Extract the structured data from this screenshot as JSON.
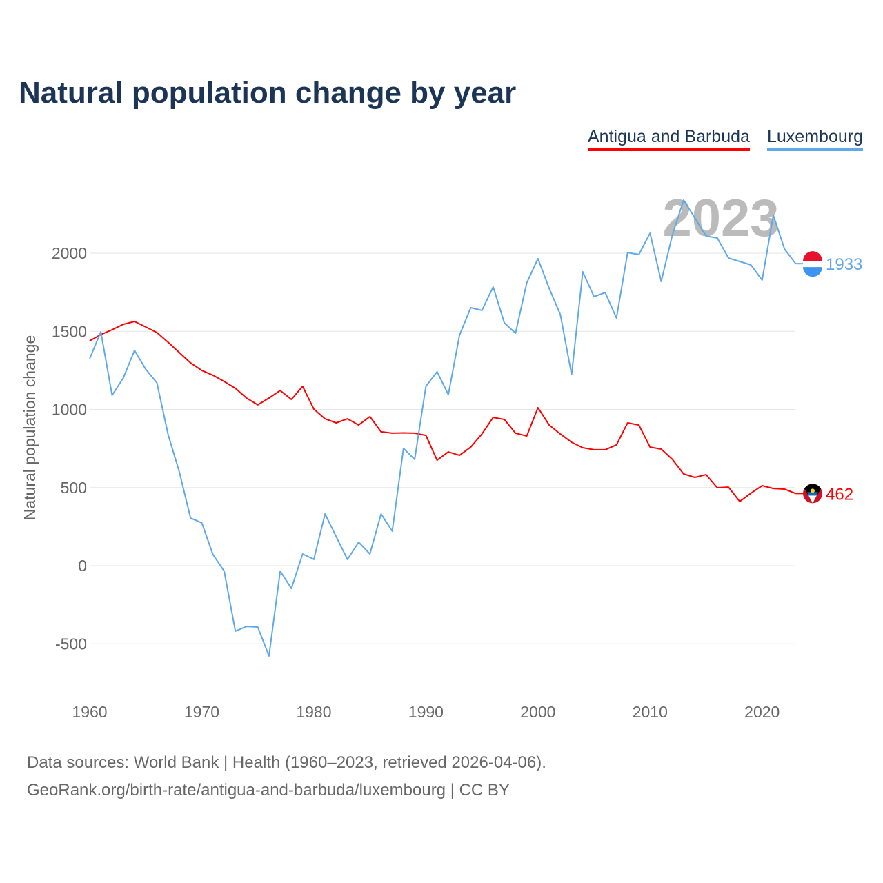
{
  "title": "Natural population change by year",
  "legend": [
    {
      "label": "Antigua and Barbuda",
      "color": "#ff0000"
    },
    {
      "label": "Luxembourg",
      "color": "#5fa8ea"
    }
  ],
  "year_watermark": "2023",
  "footer": {
    "line1": "Data sources: World Bank | Health (1960–2023, retrieved 2026-04-06).",
    "line2": "GeoRank.org/birth-rate/antigua-and-barbuda/luxembourg | CC BY"
  },
  "chart_data": {
    "type": "line",
    "title": "Natural population change by year",
    "xlabel": "",
    "ylabel": "Natural population change",
    "xlim": [
      1960,
      2023
    ],
    "ylim": [
      -750,
      2450
    ],
    "x_ticks": [
      "1960",
      "1970",
      "1980",
      "1990",
      "2000",
      "2010",
      "2020"
    ],
    "y_ticks": [
      "-500",
      "0",
      "500",
      "1000",
      "1500",
      "2000"
    ],
    "grid": true,
    "legend_position": "top-right",
    "x": [
      1960,
      1961,
      1962,
      1963,
      1964,
      1965,
      1966,
      1967,
      1968,
      1969,
      1970,
      1971,
      1972,
      1973,
      1974,
      1975,
      1976,
      1977,
      1978,
      1979,
      1980,
      1981,
      1982,
      1983,
      1984,
      1985,
      1986,
      1987,
      1988,
      1989,
      1990,
      1991,
      1992,
      1993,
      1994,
      1995,
      1996,
      1997,
      1998,
      1999,
      2000,
      2001,
      2002,
      2003,
      2004,
      2005,
      2006,
      2007,
      2008,
      2009,
      2010,
      2011,
      2012,
      2013,
      2014,
      2015,
      2016,
      2017,
      2018,
      2019,
      2020,
      2021,
      2022,
      2023
    ],
    "series": [
      {
        "name": "Antigua and Barbuda",
        "color": "#ff0000",
        "end_label": "462",
        "values": [
          1439,
          1479,
          1510,
          1545,
          1563,
          1528,
          1492,
          1430,
          1364,
          1298,
          1250,
          1219,
          1179,
          1135,
          1073,
          1029,
          1073,
          1121,
          1064,
          1148,
          1002,
          940,
          914,
          940,
          900,
          954,
          857,
          848,
          850,
          848,
          834,
          675,
          728,
          706,
          759,
          843,
          949,
          936,
          848,
          830,
          1011,
          900,
          843,
          790,
          755,
          742,
          742,
          773,
          914,
          900,
          759,
          746,
          680,
          587,
          565,
          583,
          499,
          503,
          411,
          464,
          512,
          494,
          490,
          462
        ]
      },
      {
        "name": "Luxembourg",
        "color": "#5fa8ea",
        "end_label": "1933",
        "values": [
          1325,
          1497,
          1091,
          1201,
          1378,
          1258,
          1170,
          839,
          600,
          305,
          274,
          71,
          -35,
          -419,
          -389,
          -393,
          -578,
          -35,
          -146,
          75,
          40,
          331,
          185,
          40,
          150,
          75,
          331,
          221,
          751,
          680,
          1148,
          1241,
          1095,
          1475,
          1651,
          1634,
          1784,
          1554,
          1488,
          1810,
          1965,
          1775,
          1607,
          1223,
          1881,
          1722,
          1748,
          1585,
          2004,
          1991,
          2128,
          1819,
          2119,
          2340,
          2225,
          2110,
          2097,
          1969,
          1947,
          1925,
          1828,
          2243,
          2026,
          1933
        ]
      }
    ]
  }
}
